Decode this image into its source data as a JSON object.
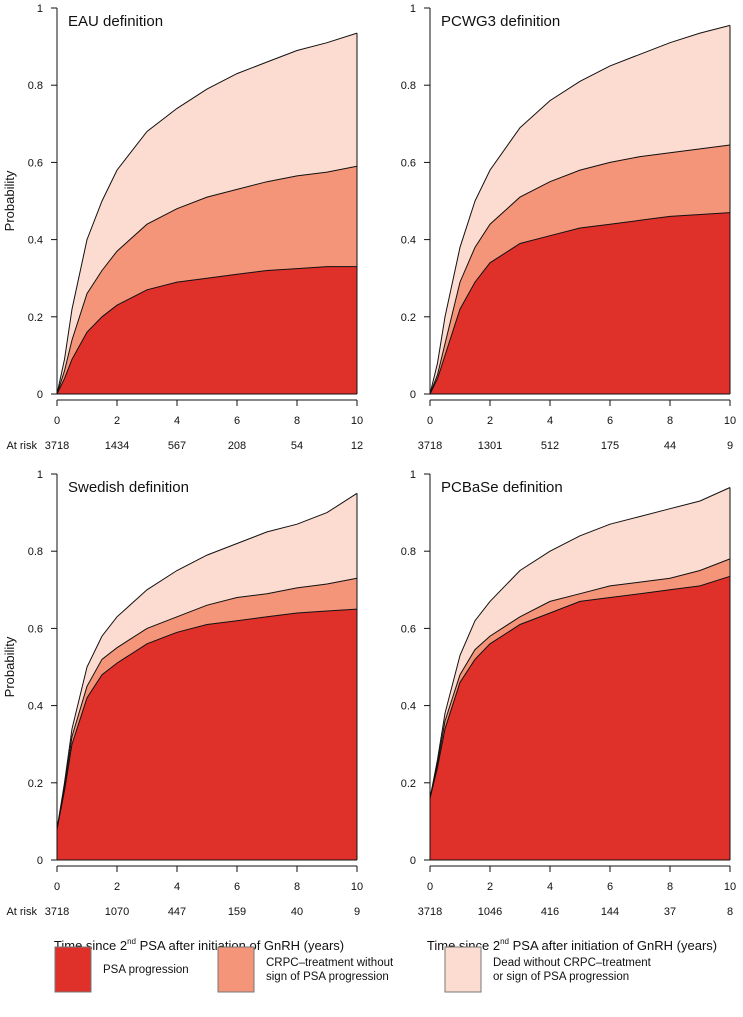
{
  "chart_data": [
    {
      "type": "area",
      "title": "EAU definition",
      "ylabel": "Probability",
      "xlabel": "",
      "xlim": [
        0,
        10
      ],
      "ylim": [
        0,
        1
      ],
      "xticks": [
        "0",
        "2",
        "4",
        "6",
        "8",
        "10"
      ],
      "yticks": [
        "0",
        "0.2",
        "0.4",
        "0.6",
        "0.8",
        "1"
      ],
      "at_risk_label": "At risk",
      "at_risk": [
        "3718",
        "1434",
        "567",
        "208",
        "54",
        "12"
      ],
      "x": [
        0,
        0.25,
        0.5,
        1,
        1.5,
        2,
        3,
        4,
        5,
        6,
        7,
        8,
        9,
        10
      ],
      "series_cumulative": [
        [
          0,
          0.04,
          0.09,
          0.16,
          0.2,
          0.23,
          0.27,
          0.29,
          0.3,
          0.31,
          0.32,
          0.325,
          0.33,
          0.33
        ],
        [
          0,
          0.06,
          0.14,
          0.26,
          0.32,
          0.37,
          0.44,
          0.48,
          0.51,
          0.53,
          0.55,
          0.565,
          0.575,
          0.59
        ],
        [
          0,
          0.09,
          0.22,
          0.4,
          0.5,
          0.58,
          0.68,
          0.74,
          0.79,
          0.83,
          0.86,
          0.89,
          0.91,
          0.935
        ]
      ]
    },
    {
      "type": "area",
      "title": "PCWG3 definition",
      "ylabel": "",
      "xlabel": "",
      "xlim": [
        0,
        10
      ],
      "ylim": [
        0,
        1
      ],
      "xticks": [
        "0",
        "2",
        "4",
        "6",
        "8",
        "10"
      ],
      "yticks": [
        "0",
        "0.2",
        "0.4",
        "0.6",
        "0.8",
        "1"
      ],
      "at_risk_label": "",
      "at_risk": [
        "3718",
        "1301",
        "512",
        "175",
        "44",
        "9"
      ],
      "x": [
        0,
        0.25,
        0.5,
        1,
        1.5,
        2,
        3,
        4,
        5,
        6,
        7,
        8,
        9,
        10
      ],
      "series_cumulative": [
        [
          0,
          0.04,
          0.1,
          0.22,
          0.29,
          0.34,
          0.39,
          0.41,
          0.43,
          0.44,
          0.45,
          0.46,
          0.465,
          0.47
        ],
        [
          0,
          0.05,
          0.13,
          0.29,
          0.38,
          0.44,
          0.51,
          0.55,
          0.58,
          0.6,
          0.615,
          0.625,
          0.635,
          0.645
        ],
        [
          0,
          0.08,
          0.2,
          0.38,
          0.5,
          0.58,
          0.69,
          0.76,
          0.81,
          0.85,
          0.88,
          0.91,
          0.935,
          0.955
        ]
      ]
    },
    {
      "type": "area",
      "title": "Swedish definition",
      "ylabel": "Probability",
      "xlabel": "Time since 2nd PSA after initiation of GnRH (years)",
      "xlim": [
        0,
        10
      ],
      "ylim": [
        0,
        1
      ],
      "xticks": [
        "0",
        "2",
        "4",
        "6",
        "8",
        "10"
      ],
      "yticks": [
        "0",
        "0.2",
        "0.4",
        "0.6",
        "0.8",
        "1"
      ],
      "at_risk_label": "At risk",
      "at_risk": [
        "3718",
        "1070",
        "447",
        "159",
        "40",
        "9"
      ],
      "x": [
        0,
        0.25,
        0.5,
        1,
        1.5,
        2,
        3,
        4,
        5,
        6,
        7,
        8,
        9,
        10
      ],
      "series_cumulative": [
        [
          0.08,
          0.18,
          0.3,
          0.42,
          0.48,
          0.51,
          0.56,
          0.59,
          0.61,
          0.62,
          0.63,
          0.64,
          0.645,
          0.65
        ],
        [
          0.08,
          0.19,
          0.32,
          0.45,
          0.52,
          0.55,
          0.6,
          0.63,
          0.66,
          0.68,
          0.69,
          0.705,
          0.715,
          0.73
        ],
        [
          0.08,
          0.2,
          0.34,
          0.5,
          0.58,
          0.63,
          0.7,
          0.75,
          0.79,
          0.82,
          0.85,
          0.87,
          0.9,
          0.95
        ]
      ]
    },
    {
      "type": "area",
      "title": "PCBaSe definition",
      "ylabel": "",
      "xlabel": "Time since 2nd PSA after initiation of GnRH (years)",
      "xlim": [
        0,
        10
      ],
      "ylim": [
        0,
        1
      ],
      "xticks": [
        "0",
        "2",
        "4",
        "6",
        "8",
        "10"
      ],
      "yticks": [
        "0",
        "0.2",
        "0.4",
        "0.6",
        "0.8",
        "1"
      ],
      "at_risk_label": "",
      "at_risk": [
        "3718",
        "1046",
        "416",
        "144",
        "37",
        "8"
      ],
      "x": [
        0,
        0.25,
        0.5,
        1,
        1.5,
        2,
        3,
        4,
        5,
        6,
        7,
        8,
        9,
        10
      ],
      "series_cumulative": [
        [
          0.16,
          0.24,
          0.34,
          0.46,
          0.52,
          0.56,
          0.61,
          0.64,
          0.67,
          0.68,
          0.69,
          0.7,
          0.71,
          0.735
        ],
        [
          0.16,
          0.25,
          0.36,
          0.48,
          0.545,
          0.58,
          0.63,
          0.67,
          0.69,
          0.71,
          0.72,
          0.73,
          0.75,
          0.78
        ],
        [
          0.16,
          0.26,
          0.38,
          0.53,
          0.62,
          0.67,
          0.75,
          0.8,
          0.84,
          0.87,
          0.89,
          0.91,
          0.93,
          0.965
        ]
      ]
    }
  ],
  "legend": {
    "placement": "bottom",
    "items": [
      {
        "label_lines": [
          "PSA progression"
        ],
        "color": "#e0302a"
      },
      {
        "label_lines": [
          "CRPC–treatment without",
          "sign of PSA progression"
        ],
        "color": "#f4957a"
      },
      {
        "label_lines": [
          "Dead without CRPC–treatment",
          "or sign of PSA progression"
        ],
        "color": "#fcdcd0"
      }
    ]
  }
}
